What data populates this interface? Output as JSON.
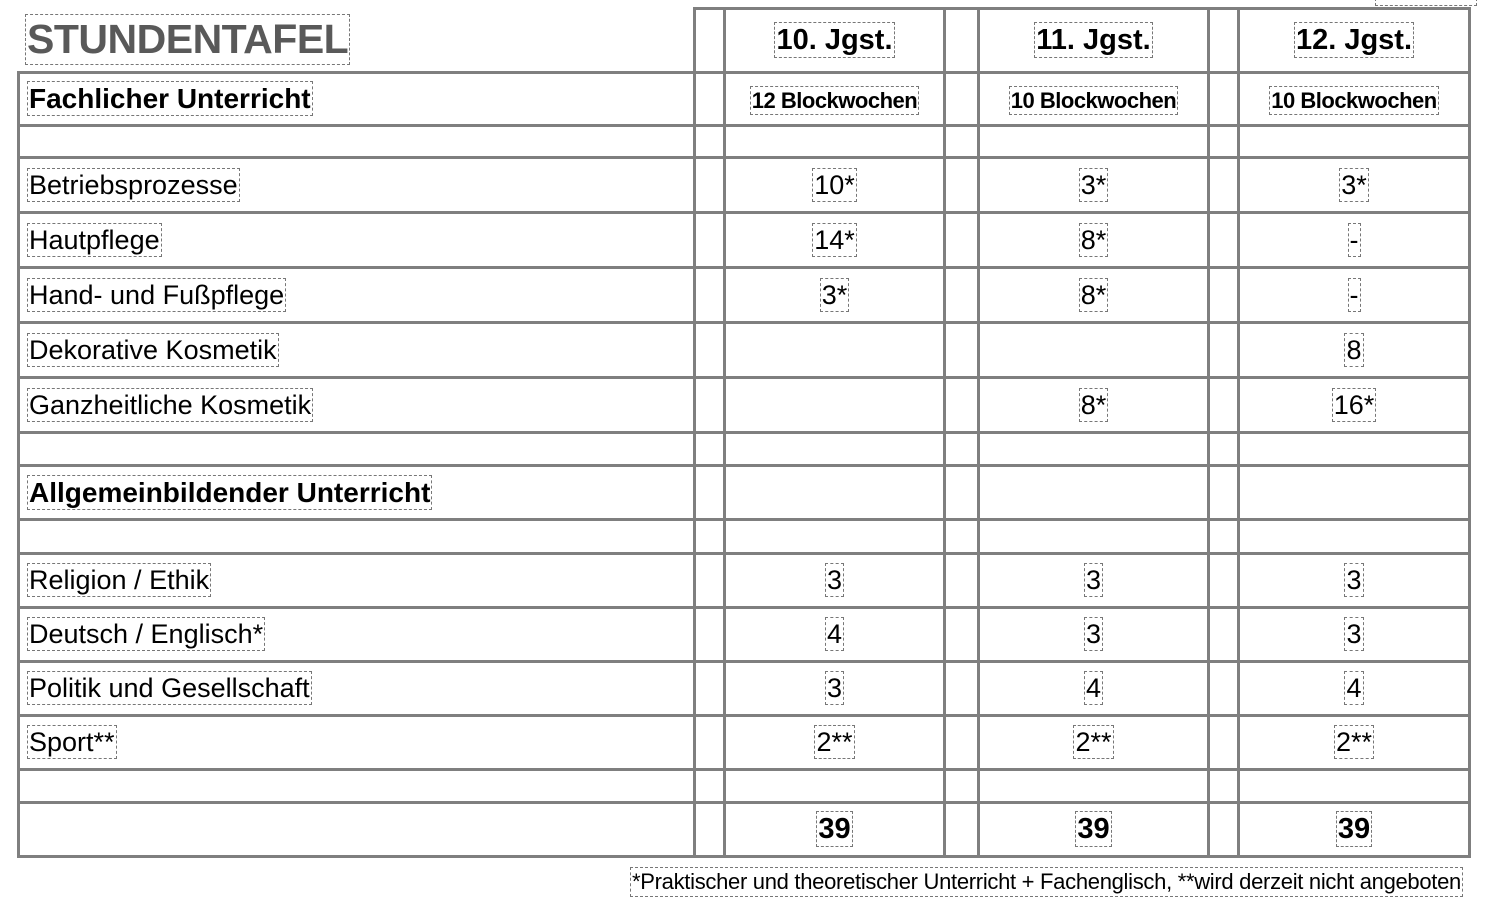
{
  "title": "STUNDENTAFEL",
  "columns": [
    "10. Jgst.",
    "11. Jgst.",
    "12. Jgst."
  ],
  "section1": {
    "label": "Fachlicher Unterricht",
    "weeks": [
      "12 Blockwochen",
      "10 Blockwochen",
      "10 Blockwochen"
    ]
  },
  "rows1": [
    {
      "subject": "Betriebsprozesse",
      "values": [
        "10*",
        "3*",
        "3*"
      ]
    },
    {
      "subject": "Hautpflege",
      "values": [
        "14*",
        "8*",
        "-"
      ]
    },
    {
      "subject": "Hand- und Fußpflege",
      "values": [
        "3*",
        "8*",
        "-"
      ]
    },
    {
      "subject": "Dekorative Kosmetik",
      "values": [
        "",
        "",
        "8"
      ]
    },
    {
      "subject": "Ganzheitliche Kosmetik",
      "values": [
        "",
        "8*",
        "16*"
      ]
    }
  ],
  "section2": {
    "label": "Allgemeinbildender Unterricht"
  },
  "rows2": [
    {
      "subject": "Religion / Ethik",
      "values": [
        "3",
        "3",
        "3"
      ]
    },
    {
      "subject": "Deutsch / Englisch*",
      "values": [
        "4",
        "3",
        "3"
      ]
    },
    {
      "subject": "Politik und Gesellschaft",
      "values": [
        "3",
        "4",
        "4"
      ]
    },
    {
      "subject": "Sport**",
      "values": [
        "2**",
        "2**",
        "2**"
      ]
    }
  ],
  "totals": [
    "39",
    "39",
    "39"
  ],
  "footnote": "*Praktischer und theoretischer Unterricht + Fachenglisch, **wird derzeit nicht angeboten"
}
